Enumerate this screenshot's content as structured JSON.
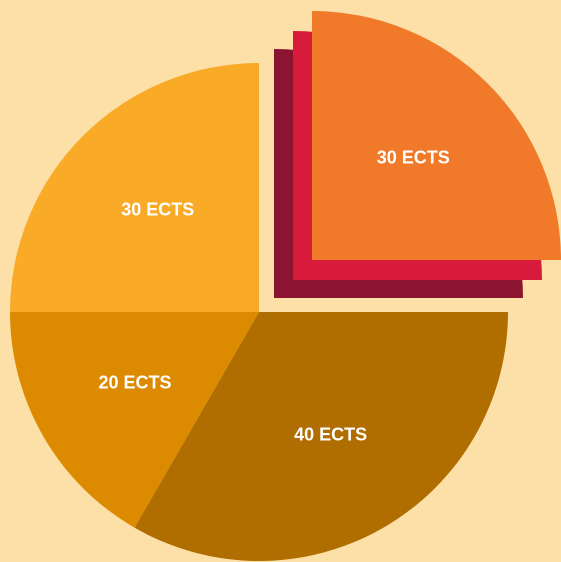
{
  "chart_data": {
    "type": "pie",
    "values": [
      30,
      40,
      20,
      30
    ],
    "value_labels": [
      "30 ECTS",
      "40 ECTS",
      "20 ECTS",
      "30 ECTS"
    ],
    "colors": [
      "#f07a2a",
      "#b06e00",
      "#dc8a00",
      "#f9ab27"
    ],
    "explode": [
      true,
      false,
      false,
      false
    ],
    "explode_layer_colors": [
      "#8b1530",
      "#d81b3a"
    ]
  }
}
